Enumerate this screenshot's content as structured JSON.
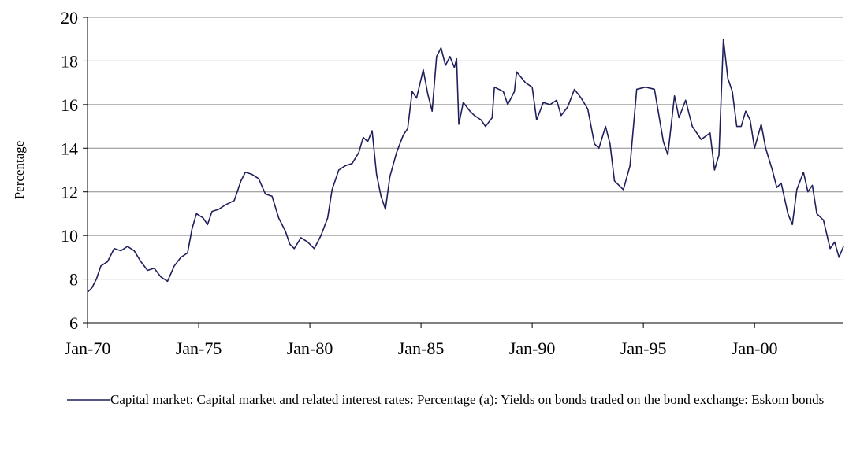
{
  "chart_data": {
    "type": "line",
    "y_label": "Percentage",
    "ylim": [
      6,
      20
    ],
    "yticks": [
      6,
      8,
      10,
      12,
      14,
      16,
      18,
      20
    ],
    "xlim": [
      1970,
      2004
    ],
    "xticks": [
      {
        "value": 1970,
        "label": "Jan-70"
      },
      {
        "value": 1975,
        "label": "Jan-75"
      },
      {
        "value": 1980,
        "label": "Jan-80"
      },
      {
        "value": 1985,
        "label": "Jan-85"
      },
      {
        "value": 1990,
        "label": "Jan-90"
      },
      {
        "value": 1995,
        "label": "Jan-95"
      },
      {
        "value": 2000,
        "label": "Jan-00"
      }
    ],
    "grid": true,
    "legend": "bottom",
    "x": [
      1970.0,
      1970.2,
      1970.4,
      1970.6,
      1970.9,
      1971.2,
      1971.5,
      1971.8,
      1972.1,
      1972.4,
      1972.7,
      1973.0,
      1973.3,
      1973.6,
      1973.9,
      1974.2,
      1974.5,
      1974.7,
      1974.9,
      1975.2,
      1975.4,
      1975.6,
      1975.9,
      1976.2,
      1976.6,
      1976.9,
      1977.1,
      1977.4,
      1977.7,
      1978.0,
      1978.3,
      1978.6,
      1978.9,
      1979.1,
      1979.3,
      1979.6,
      1979.9,
      1980.2,
      1980.5,
      1980.8,
      1981.0,
      1981.3,
      1981.6,
      1981.9,
      1982.2,
      1982.4,
      1982.6,
      1982.8,
      1983.0,
      1983.2,
      1983.4,
      1983.6,
      1983.9,
      1984.2,
      1984.4,
      1984.6,
      1984.8,
      1985.1,
      1985.3,
      1985.5,
      1985.7,
      1985.9,
      1986.1,
      1986.3,
      1986.5,
      1986.6,
      1986.7,
      1986.9,
      1987.2,
      1987.4,
      1987.7,
      1987.9,
      1988.2,
      1988.3,
      1988.7,
      1988.9,
      1989.2,
      1989.3,
      1989.7,
      1990.0,
      1990.2,
      1990.5,
      1990.8,
      1991.1,
      1991.3,
      1991.6,
      1991.9,
      1992.2,
      1992.5,
      1992.8,
      1993.0,
      1993.3,
      1993.5,
      1993.7,
      1994.1,
      1994.4,
      1994.7,
      1995.1,
      1995.5,
      1995.9,
      1996.1,
      1996.4,
      1996.6,
      1996.9,
      1997.2,
      1997.6,
      1998.0,
      1998.2,
      1998.4,
      1998.6,
      1998.8,
      1999.0,
      1999.2,
      1999.4,
      1999.6,
      1999.8,
      2000.0,
      2000.3,
      2000.5,
      2000.8,
      2001.0,
      2001.2,
      2001.5,
      2001.7,
      2001.9,
      2002.2,
      2002.4,
      2002.6,
      2002.8,
      2003.1,
      2003.4,
      2003.6,
      2003.8,
      2004.0
    ],
    "series": [
      {
        "name": "Capital market: Capital market and related interest rates: Percentage (a): Yields on bonds traded on the bond exchange: Eskom bonds",
        "color": "#1f1f5c",
        "values": [
          7.4,
          7.6,
          8.0,
          8.6,
          8.8,
          9.4,
          9.3,
          9.5,
          9.3,
          8.8,
          8.4,
          8.5,
          8.1,
          7.9,
          8.6,
          9.0,
          9.2,
          10.3,
          11.0,
          10.8,
          10.5,
          11.1,
          11.2,
          11.4,
          11.6,
          12.5,
          12.9,
          12.8,
          12.6,
          11.9,
          11.8,
          10.8,
          10.2,
          9.6,
          9.4,
          9.9,
          9.7,
          9.4,
          10.0,
          10.8,
          12.1,
          13.0,
          13.2,
          13.3,
          13.8,
          14.5,
          14.3,
          14.8,
          12.8,
          11.8,
          11.2,
          12.7,
          13.8,
          14.6,
          14.9,
          16.6,
          16.3,
          17.6,
          16.5,
          15.7,
          18.2,
          18.6,
          17.8,
          18.2,
          17.7,
          18.1,
          15.1,
          16.1,
          15.7,
          15.5,
          15.3,
          15.0,
          15.4,
          16.8,
          16.6,
          16.0,
          16.6,
          17.5,
          17.0,
          16.8,
          15.3,
          16.1,
          16.0,
          16.2,
          15.5,
          15.9,
          16.7,
          16.3,
          15.8,
          14.2,
          14.0,
          15.0,
          14.2,
          12.5,
          12.1,
          13.2,
          16.7,
          16.8,
          16.7,
          14.3,
          13.7,
          16.4,
          15.4,
          16.2,
          15.0,
          14.4,
          14.7,
          13.0,
          13.7,
          19.0,
          17.2,
          16.6,
          15.0,
          15.0,
          15.7,
          15.3,
          14.0,
          15.1,
          14.0,
          13.0,
          12.2,
          12.4,
          11.0,
          10.5,
          12.1,
          12.9,
          12.0,
          12.3,
          11.0,
          10.7,
          9.4,
          9.7,
          9.0,
          9.5
        ]
      }
    ]
  }
}
